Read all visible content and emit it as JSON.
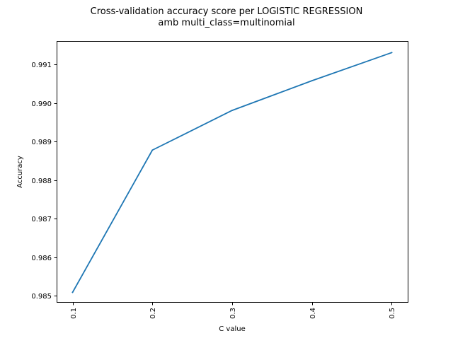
{
  "chart_data": {
    "type": "line",
    "title": "Cross-validation accuracy score per LOGISTIC REGRESSION",
    "subtitle": "amb multi_class=multinomial",
    "xlabel": "C value",
    "ylabel": "Accuracy",
    "x": [
      0.1,
      0.2,
      0.3,
      0.4,
      0.5
    ],
    "x_tick_labels": [
      "0.1",
      "0.2",
      "0.3",
      "0.4",
      "0.5"
    ],
    "y_ticks": [
      0.985,
      0.986,
      0.987,
      0.988,
      0.989,
      0.99,
      0.991
    ],
    "y_tick_labels": [
      "0.985",
      "0.986",
      "0.987",
      "0.988",
      "0.989",
      "0.990",
      "0.991"
    ],
    "xlim": [
      0.08,
      0.52
    ],
    "ylim": [
      0.98484,
      0.99161
    ],
    "grid": false,
    "series": [
      {
        "values": [
          0.98509,
          0.98878,
          0.98981,
          0.99058,
          0.99131
        ],
        "color": "#1f77b4"
      }
    ]
  }
}
